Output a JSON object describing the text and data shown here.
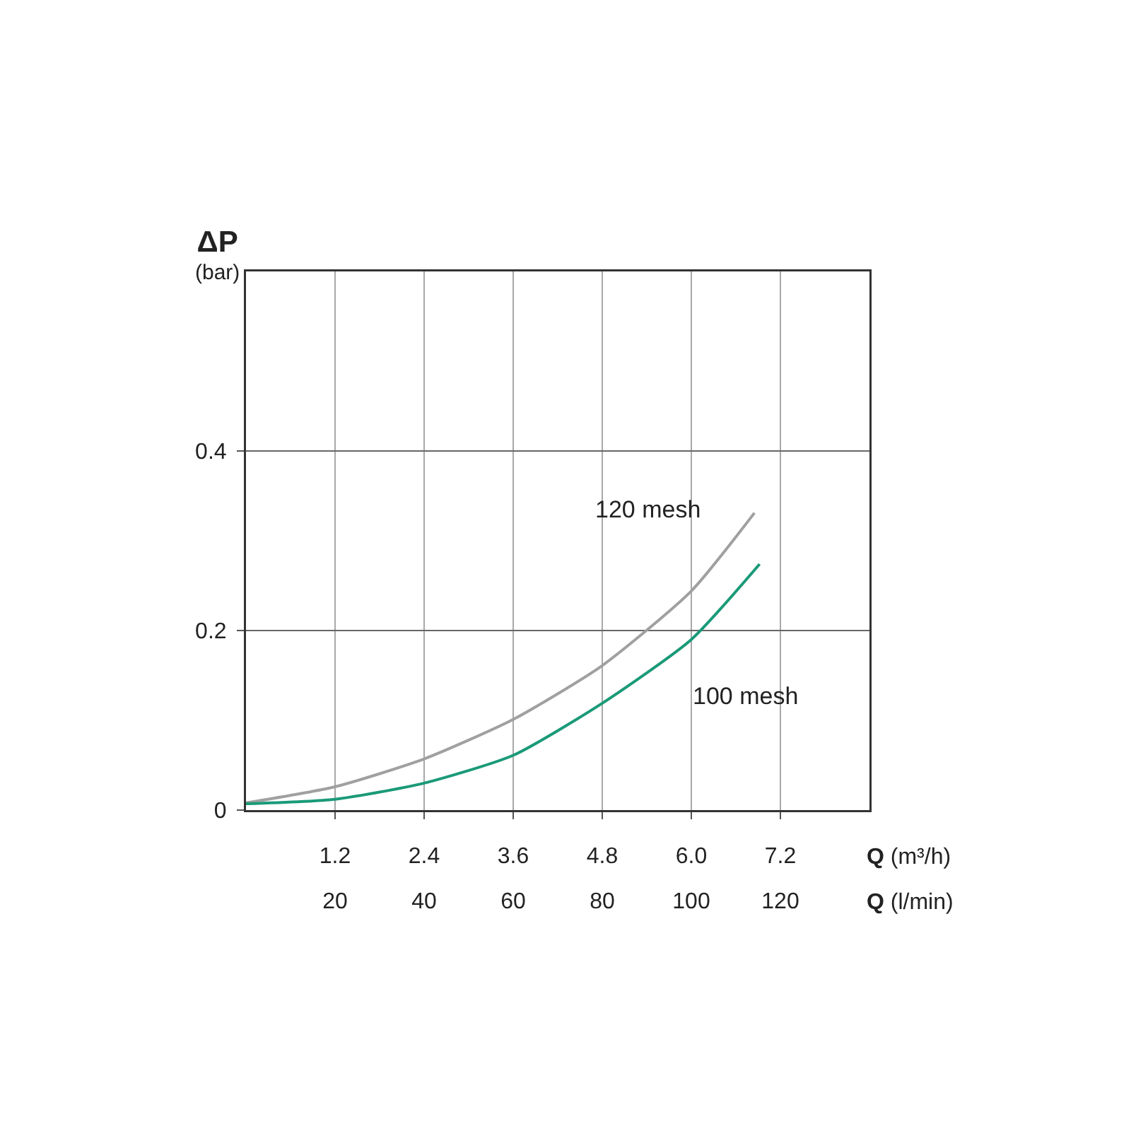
{
  "chart_data": {
    "type": "line",
    "xlabel": "Q (m³/h)",
    "x2label": "Q (l/min)",
    "ylabel": "ΔP (bar)",
    "xlim": [
      0,
      8.4
    ],
    "xticks": [
      1.2,
      2.4,
      3.6,
      4.8,
      {
        "value": 6,
        "label": "6.0"
      },
      7.2
    ],
    "x2lim": [
      0,
      140
    ],
    "x2ticks": [
      20,
      40,
      60,
      80,
      100,
      120
    ],
    "ylim": [
      0,
      0.6
    ],
    "yticks": [
      0,
      0.2,
      0.4
    ],
    "grid": true,
    "legend": false,
    "marker": "none",
    "line_style": "solid",
    "series": [
      {
        "name": "120 mesh",
        "color": "#a0a0a0",
        "x": [
          0,
          1.2,
          2.4,
          3.6,
          4.8,
          6.0,
          6.85
        ],
        "values": [
          0.008,
          0.026,
          0.057,
          0.101,
          0.161,
          0.244,
          0.331
        ]
      },
      {
        "name": "100 mesh",
        "color": "#1a9a78",
        "x": [
          0,
          1.2,
          2.4,
          3.6,
          4.8,
          6.0,
          6.92
        ],
        "values": [
          0.007,
          0.012,
          0.03,
          0.061,
          0.119,
          0.19,
          0.274
        ]
      }
    ]
  }
}
